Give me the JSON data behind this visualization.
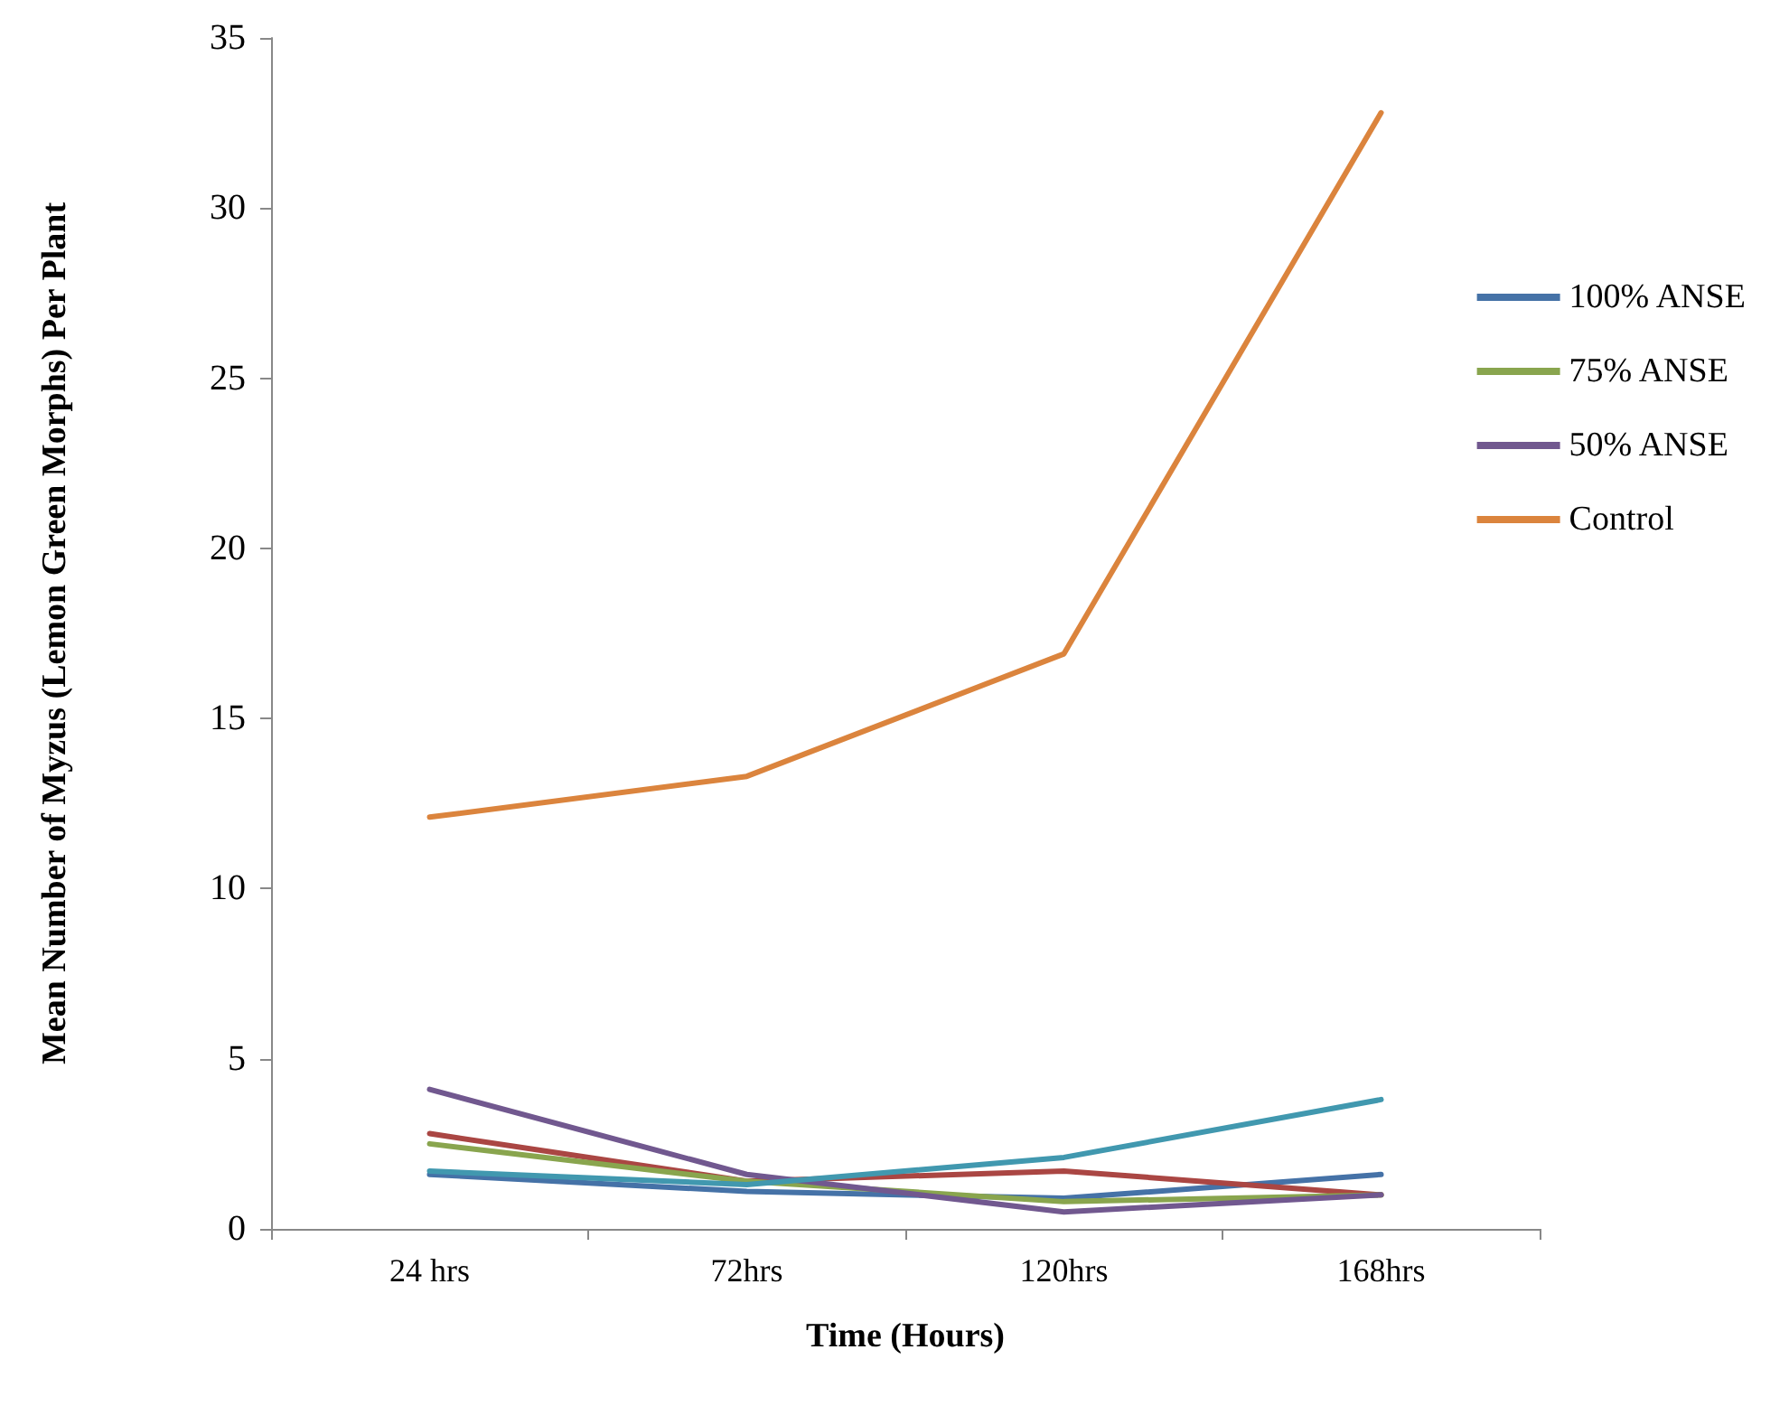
{
  "chart_data": {
    "type": "line",
    "xlabel": "Time (Hours)",
    "ylabel": "Mean Number of Myzus (Lemon Green Morphs) Per Plant",
    "categories": [
      "24 hrs",
      "72hrs",
      "120hrs",
      "168hrs"
    ],
    "series": [
      {
        "name": "100% ANSE",
        "color": "#4572a7",
        "values": [
          1.6,
          1.1,
          0.9,
          1.6
        ]
      },
      {
        "color": "#aa4643",
        "values": [
          2.8,
          1.4,
          1.7,
          1.0
        ]
      },
      {
        "name": "75% ANSE",
        "color": "#89a54e",
        "values": [
          2.5,
          1.4,
          0.8,
          1.0
        ]
      },
      {
        "name": "50% ANSE",
        "color": "#71588f",
        "values": [
          4.1,
          1.6,
          0.5,
          1.0
        ]
      },
      {
        "color": "#4198af",
        "values": [
          1.7,
          1.3,
          2.1,
          3.8
        ]
      },
      {
        "name": "Control",
        "color": "#db843d",
        "values": [
          12.1,
          13.3,
          16.9,
          32.8
        ]
      }
    ],
    "ylim": [
      0,
      35
    ],
    "yticks": [
      0,
      5,
      10,
      15,
      20,
      25,
      30,
      35
    ],
    "grid": false,
    "legend": "right",
    "marker": "none",
    "line_style": "solid"
  }
}
